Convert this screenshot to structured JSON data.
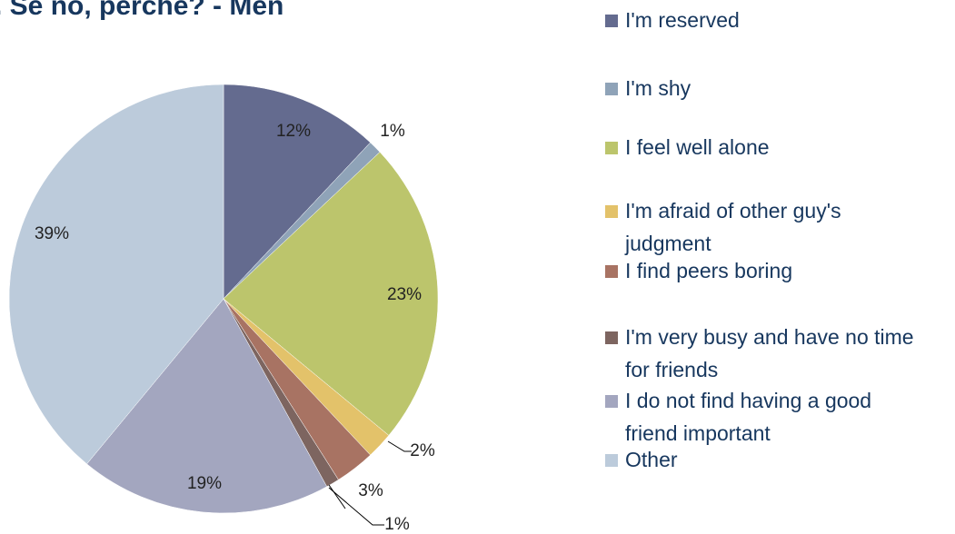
{
  "chart_data": {
    "type": "pie",
    "title": ". Se no, perchè? - Men",
    "categories": [
      "I'm reserved",
      "I'm shy",
      "I feel well alone",
      "I'm afraid of other guy's judgment",
      "I find peers boring",
      "I'm very busy and have no time for friends",
      "I do not find having a good friend important",
      "Other"
    ],
    "values": [
      12,
      1,
      23,
      2,
      3,
      1,
      19,
      39
    ],
    "value_labels": [
      "12%",
      "1%",
      "23%",
      "2%",
      "3%",
      "1%",
      "19%",
      "39%"
    ],
    "colors": [
      "#646b8f",
      "#8fa3b8",
      "#bcc56c",
      "#e3c26a",
      "#a87363",
      "#7d6560",
      "#a3a6bf",
      "#bccbdb"
    ],
    "legend": "right"
  }
}
